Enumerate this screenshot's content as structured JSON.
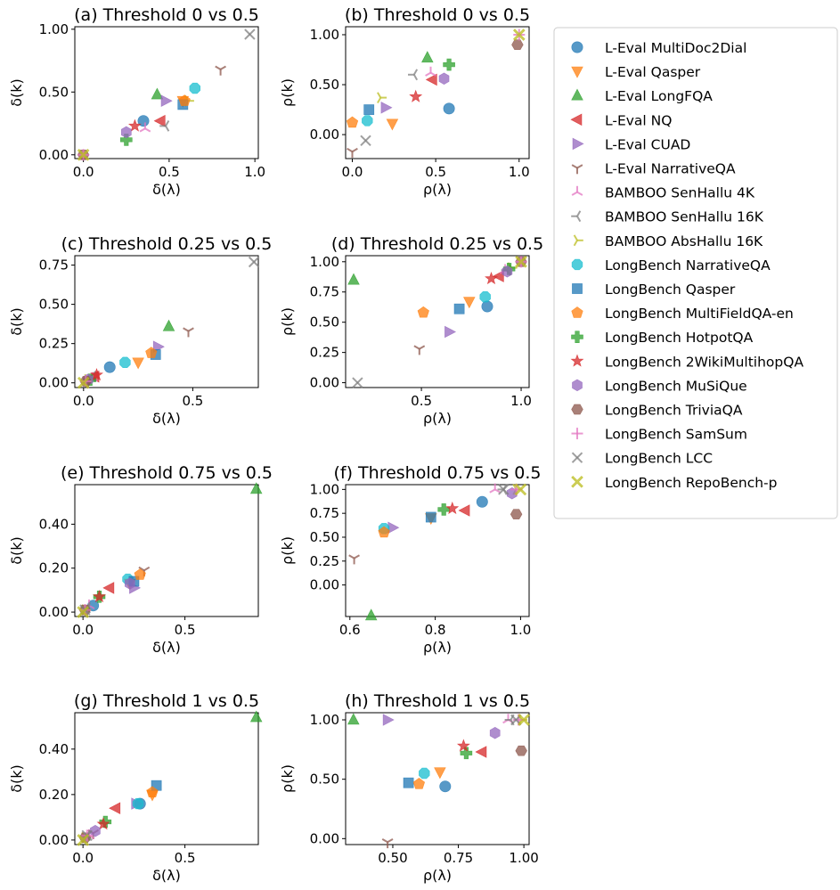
{
  "figure": {
    "background": "#ffffff"
  },
  "legend": {
    "entries": [
      {
        "label": "L-Eval MultiDoc2Dial",
        "marker": "circle",
        "color": "#1f77b4"
      },
      {
        "label": "L-Eval Qasper",
        "marker": "triangle-down",
        "color": "#ff7f0e"
      },
      {
        "label": "L-Eval LongFQA",
        "marker": "triangle-up",
        "color": "#2ca02c"
      },
      {
        "label": "L-Eval NQ",
        "marker": "triangle-left",
        "color": "#d62728"
      },
      {
        "label": "L-Eval CUAD",
        "marker": "triangle-right",
        "color": "#9467bd"
      },
      {
        "label": "L-Eval NarrativeQA",
        "marker": "tri-down",
        "color": "#8c564b"
      },
      {
        "label": "BAMBOO SenHallu 4K",
        "marker": "tri-up",
        "color": "#e377c2"
      },
      {
        "label": "BAMBOO SenHallu 16K",
        "marker": "tri-left",
        "color": "#7f7f7f"
      },
      {
        "label": "BAMBOO AbsHallu 16K",
        "marker": "tri-right",
        "color": "#bcbd22"
      },
      {
        "label": "LongBench NarrativeQA",
        "marker": "octagon",
        "color": "#17becf"
      },
      {
        "label": "LongBench Qasper",
        "marker": "square",
        "color": "#1f77b4"
      },
      {
        "label": "LongBench MultiFieldQA-en",
        "marker": "pentagon",
        "color": "#ff7f0e"
      },
      {
        "label": "LongBench HotpotQA",
        "marker": "plus-filled",
        "color": "#2ca02c"
      },
      {
        "label": "LongBench 2WikiMultihopQA",
        "marker": "star",
        "color": "#d62728"
      },
      {
        "label": "LongBench MuSiQue",
        "marker": "hexagon",
        "color": "#9467bd"
      },
      {
        "label": "LongBench TriviaQA",
        "marker": "hexagon2",
        "color": "#8c564b"
      },
      {
        "label": "LongBench SamSum",
        "marker": "plus",
        "color": "#e377c2"
      },
      {
        "label": "LongBench LCC",
        "marker": "x",
        "color": "#7f7f7f"
      },
      {
        "label": "LongBench RepoBench-p",
        "marker": "x-filled",
        "color": "#bcbd22"
      }
    ]
  },
  "chart_data": [
    {
      "type": "scatter",
      "id": "a",
      "title": "(a) Threshold 0 vs 0.5",
      "xlabel": "δ(λ)",
      "ylabel": "δ(k)",
      "xlim": [
        -0.05,
        1.02
      ],
      "ylim": [
        -0.03,
        1.02
      ],
      "xticks": [
        0.0,
        0.5,
        1.0
      ],
      "xtick_labels": [
        "0.0",
        "0.5",
        "1.0"
      ],
      "yticks": [
        0.0,
        0.5,
        1.0
      ],
      "ytick_labels": [
        "0.00",
        "0.50",
        "1.00"
      ],
      "points": [
        [
          0.35,
          0.27
        ],
        [
          0.58,
          0.43
        ],
        [
          0.43,
          0.48
        ],
        [
          0.45,
          0.27
        ],
        [
          0.48,
          0.43
        ],
        [
          0.8,
          0.68
        ],
        [
          0.36,
          0.21
        ],
        [
          0.48,
          0.23
        ],
        [
          0.61,
          0.43
        ],
        [
          0.65,
          0.53
        ],
        [
          0.58,
          0.4
        ],
        [
          0.59,
          0.43
        ],
        [
          0.25,
          0.12
        ],
        [
          0.3,
          0.23
        ],
        [
          0.25,
          0.18
        ],
        [
          0.0,
          0.0
        ],
        [
          0.0,
          0.0
        ],
        [
          0.97,
          0.96
        ],
        [
          0.0,
          0.0
        ]
      ]
    },
    {
      "type": "scatter",
      "id": "b",
      "title": "(b) Threshold 0 vs 0.5",
      "xlabel": "ρ(λ)",
      "ylabel": "ρ(k)",
      "xlim": [
        -0.04,
        1.06
      ],
      "ylim": [
        -0.24,
        1.08
      ],
      "xticks": [
        0.0,
        0.5,
        1.0
      ],
      "xtick_labels": [
        "0.0",
        "0.5",
        "1.0"
      ],
      "yticks": [
        0.0,
        0.5,
        1.0
      ],
      "ytick_labels": [
        "0.00",
        "0.50",
        "1.00"
      ],
      "points": [
        [
          0.58,
          0.26
        ],
        [
          0.24,
          0.11
        ],
        [
          0.45,
          0.77
        ],
        [
          0.48,
          0.55
        ],
        [
          0.2,
          0.27
        ],
        [
          0.0,
          -0.17
        ],
        [
          0.47,
          0.62
        ],
        [
          0.37,
          0.6
        ],
        [
          0.17,
          0.37
        ],
        [
          0.09,
          0.14
        ],
        [
          0.1,
          0.25
        ],
        [
          0.0,
          0.12
        ],
        [
          0.58,
          0.7
        ],
        [
          0.38,
          0.38
        ],
        [
          0.55,
          0.56
        ],
        [
          0.99,
          0.9
        ],
        [
          1.0,
          1.0
        ],
        [
          0.08,
          -0.06
        ],
        [
          1.0,
          1.0
        ]
      ]
    },
    {
      "type": "scatter",
      "id": "c",
      "title": "(c) Threshold 0.25 vs 0.5",
      "xlabel": "δ(λ)",
      "ylabel": "δ(k)",
      "xlim": [
        -0.04,
        0.8
      ],
      "ylim": [
        -0.03,
        0.81
      ],
      "xticks": [
        0.0,
        0.5
      ],
      "xtick_labels": [
        "0.0",
        "0.5"
      ],
      "yticks": [
        0.0,
        0.25,
        0.5,
        0.75
      ],
      "ytick_labels": [
        "0.00",
        "0.25",
        "0.50",
        "0.75"
      ],
      "points": [
        [
          0.12,
          0.1
        ],
        [
          0.25,
          0.13
        ],
        [
          0.39,
          0.36
        ],
        [
          0.05,
          0.04
        ],
        [
          0.34,
          0.23
        ],
        [
          0.48,
          0.33
        ],
        [
          0.04,
          0.03
        ],
        [
          0.04,
          0.04
        ],
        [
          0.02,
          0.02
        ],
        [
          0.19,
          0.13
        ],
        [
          0.33,
          0.18
        ],
        [
          0.31,
          0.19
        ],
        [
          0.03,
          0.02
        ],
        [
          0.06,
          0.05
        ],
        [
          0.02,
          0.02
        ],
        [
          0.01,
          0.01
        ],
        [
          0.01,
          0.01
        ],
        [
          0.78,
          0.77
        ],
        [
          0.0,
          0.0
        ]
      ]
    },
    {
      "type": "scatter",
      "id": "d",
      "title": "(d) Threshold 0.25 vs 0.5",
      "xlabel": "ρ(λ)",
      "ylabel": "ρ(k)",
      "xlim": [
        0.12,
        1.04
      ],
      "ylim": [
        -0.04,
        1.05
      ],
      "xticks": [
        0.5,
        1.0
      ],
      "xtick_labels": [
        "0.5",
        "1.0"
      ],
      "yticks": [
        0.0,
        0.25,
        0.5,
        0.75,
        1.0
      ],
      "ytick_labels": [
        "0.00",
        "0.25",
        "0.50",
        "0.75",
        "1.00"
      ],
      "points": [
        [
          0.83,
          0.63
        ],
        [
          0.74,
          0.67
        ],
        [
          0.16,
          0.85
        ],
        [
          0.89,
          0.88
        ],
        [
          0.64,
          0.42
        ],
        [
          0.49,
          0.28
        ],
        [
          0.92,
          0.93
        ],
        [
          0.93,
          0.93
        ],
        [
          0.95,
          0.95
        ],
        [
          0.82,
          0.71
        ],
        [
          0.69,
          0.61
        ],
        [
          0.51,
          0.58
        ],
        [
          0.94,
          0.94
        ],
        [
          0.85,
          0.86
        ],
        [
          0.93,
          0.92
        ],
        [
          1.0,
          1.0
        ],
        [
          1.0,
          1.0
        ],
        [
          0.18,
          0.0
        ],
        [
          1.0,
          1.0
        ]
      ]
    },
    {
      "type": "scatter",
      "id": "e",
      "title": "(e) Threshold 0.75 vs 0.5",
      "xlabel": "δ(λ)",
      "ylabel": "δ(k)",
      "xlim": [
        -0.04,
        0.86
      ],
      "ylim": [
        -0.02,
        0.58
      ],
      "xticks": [
        0.0,
        0.5
      ],
      "xtick_labels": [
        "0.0",
        "0.5"
      ],
      "yticks": [
        0.0,
        0.2,
        0.4
      ],
      "ytick_labels": [
        "0.00",
        "0.20",
        "0.40"
      ],
      "points": [
        [
          0.05,
          0.03
        ],
        [
          0.23,
          0.13
        ],
        [
          0.85,
          0.56
        ],
        [
          0.13,
          0.11
        ],
        [
          0.25,
          0.11
        ],
        [
          0.3,
          0.19
        ],
        [
          0.03,
          0.03
        ],
        [
          0.02,
          0.02
        ],
        [
          0.01,
          0.01
        ],
        [
          0.22,
          0.15
        ],
        [
          0.25,
          0.14
        ],
        [
          0.28,
          0.17
        ],
        [
          0.08,
          0.07
        ],
        [
          0.08,
          0.07
        ],
        [
          0.23,
          0.13
        ],
        [
          0.01,
          0.01
        ],
        [
          0.01,
          0.01
        ],
        [
          0.01,
          0.01
        ],
        [
          0.0,
          0.0
        ]
      ]
    },
    {
      "type": "scatter",
      "id": "f",
      "title": "(f) Threshold 0.75 vs 0.5",
      "xlabel": "ρ(λ)",
      "ylabel": "ρ(k)",
      "xlim": [
        0.59,
        1.02
      ],
      "ylim": [
        -0.33,
        1.05
      ],
      "xticks": [
        0.6,
        0.8,
        1.0
      ],
      "xtick_labels": [
        "0.6",
        "0.8",
        "1.0"
      ],
      "yticks": [
        0.0,
        0.25,
        0.5,
        0.75,
        1.0
      ],
      "ytick_labels": [
        "0.00",
        "0.25",
        "0.50",
        "0.75",
        "1.00"
      ],
      "points": [
        [
          0.91,
          0.87
        ],
        [
          0.79,
          0.7
        ],
        [
          0.65,
          -0.32
        ],
        [
          0.87,
          0.78
        ],
        [
          0.7,
          0.6
        ],
        [
          0.61,
          0.28
        ],
        [
          0.94,
          1.0
        ],
        [
          0.96,
          1.0
        ],
        [
          0.99,
          1.0
        ],
        [
          0.68,
          0.59
        ],
        [
          0.79,
          0.71
        ],
        [
          0.68,
          0.55
        ],
        [
          0.82,
          0.79
        ],
        [
          0.84,
          0.8
        ],
        [
          0.98,
          0.96
        ],
        [
          0.99,
          0.74
        ],
        [
          0.99,
          1.0
        ],
        [
          0.96,
          1.0
        ],
        [
          1.0,
          1.0
        ]
      ]
    },
    {
      "type": "scatter",
      "id": "g",
      "title": "(g) Threshold 1 vs 0.5",
      "xlabel": "δ(λ)",
      "ylabel": "δ(k)",
      "xlim": [
        -0.04,
        0.86
      ],
      "ylim": [
        -0.02,
        0.56
      ],
      "xticks": [
        0.0,
        0.5
      ],
      "xtick_labels": [
        "0.0",
        "0.5"
      ],
      "yticks": [
        0.0,
        0.2,
        0.4
      ],
      "ytick_labels": [
        "0.00",
        "0.20",
        "0.40"
      ],
      "points": [
        [
          0.28,
          0.16
        ],
        [
          0.34,
          0.2
        ],
        [
          0.85,
          0.54
        ],
        [
          0.16,
          0.14
        ],
        [
          0.26,
          0.16
        ],
        [
          0.05,
          0.03
        ],
        [
          0.03,
          0.02
        ],
        [
          0.02,
          0.02
        ],
        [
          0.01,
          0.01
        ],
        [
          0.27,
          0.16
        ],
        [
          0.36,
          0.24
        ],
        [
          0.34,
          0.21
        ],
        [
          0.11,
          0.08
        ],
        [
          0.1,
          0.07
        ],
        [
          0.06,
          0.04
        ],
        [
          0.01,
          0.01
        ],
        [
          0.02,
          0.02
        ],
        [
          0.02,
          0.02
        ],
        [
          0.0,
          0.0
        ]
      ]
    },
    {
      "type": "scatter",
      "id": "h",
      "title": "(h) Threshold 1 vs 0.5",
      "xlabel": "ρ(λ)",
      "ylabel": "ρ(k)",
      "xlim": [
        0.32,
        1.02
      ],
      "ylim": [
        -0.05,
        1.06
      ],
      "xticks": [
        0.5,
        0.75,
        1.0
      ],
      "xtick_labels": [
        "0.50",
        "0.75",
        "1.00"
      ],
      "yticks": [
        0.0,
        0.5,
        1.0
      ],
      "ytick_labels": [
        "0.00",
        "0.50",
        "1.00"
      ],
      "points": [
        [
          0.7,
          0.44
        ],
        [
          0.68,
          0.56
        ],
        [
          0.35,
          1.0
        ],
        [
          0.84,
          0.73
        ],
        [
          0.48,
          1.0
        ],
        [
          0.48,
          -0.03
        ],
        [
          0.94,
          1.0
        ],
        [
          0.95,
          1.0
        ],
        [
          0.99,
          1.0
        ],
        [
          0.62,
          0.55
        ],
        [
          0.56,
          0.47
        ],
        [
          0.6,
          0.46
        ],
        [
          0.78,
          0.72
        ],
        [
          0.77,
          0.78
        ],
        [
          0.89,
          0.89
        ],
        [
          0.99,
          0.74
        ],
        [
          0.98,
          1.0
        ],
        [
          0.97,
          1.0
        ],
        [
          1.0,
          1.0
        ]
      ]
    }
  ]
}
